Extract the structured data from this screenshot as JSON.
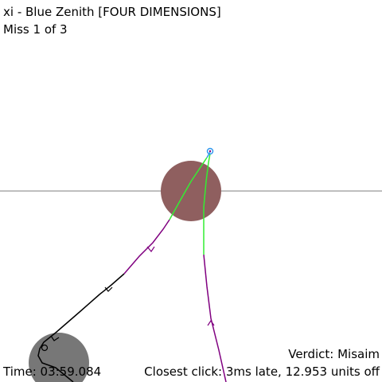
{
  "header": {
    "title": "xi - Blue Zenith [FOUR DIMENSIONS]",
    "miss_counter": "Miss 1 of 3"
  },
  "footer": {
    "time": "Time: 03:59.084",
    "verdict": "Verdict: Misaim",
    "closest_click": "Closest click: 3ms late, 12.953 units off"
  },
  "colors": {
    "hit_circle": "#8f5f5f",
    "previous_circle": "#777777",
    "playfield_line": "#aaaaaa",
    "cursor_path_early": "#000000",
    "cursor_path_mid": "#800080",
    "cursor_path_late": "#33ee33",
    "cursor_path_final": "#3399ee",
    "cursor_marker": "#3399ee"
  }
}
